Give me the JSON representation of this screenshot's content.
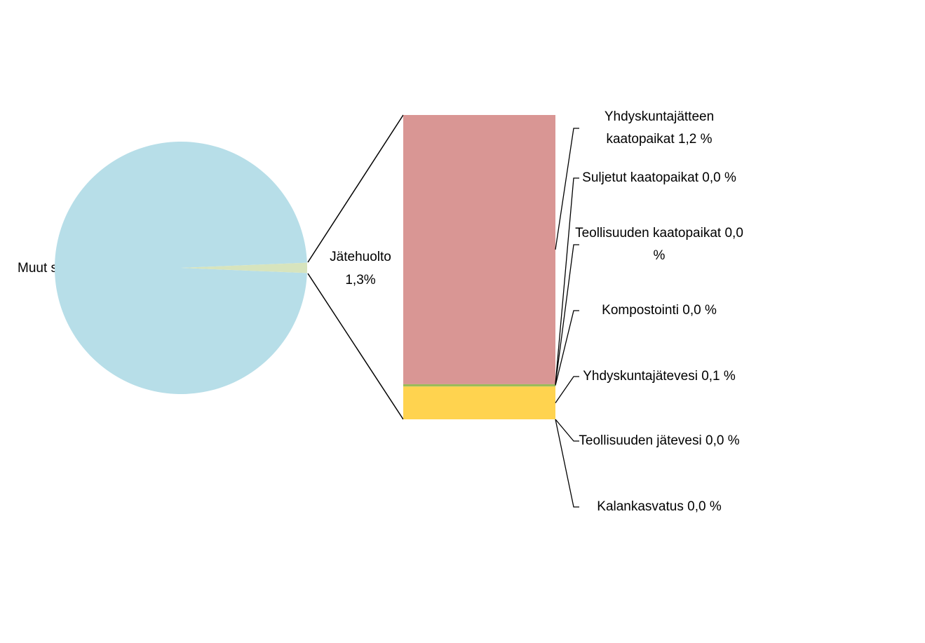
{
  "chart_data": {
    "type": "pie-of-bar",
    "pie": {
      "categories": [
        "Muut sektorit",
        "Jätehuolto"
      ],
      "values": [
        98.7,
        1.3
      ],
      "value_labels": [
        null,
        "1,3%"
      ],
      "colors": [
        "#b7dee8",
        "#d7e4bd"
      ]
    },
    "bar": {
      "categories": [
        "Yhdyskuntajätteen kaatopaikat",
        "Suljetut kaatopaikat",
        "Teollisuuden kaatopaikat",
        "Kompostointi",
        "Yhdyskuntajätevesi",
        "Teollisuuden jätevesi",
        "Kalankasvatus"
      ],
      "values": [
        1.15,
        0.0,
        0.0,
        0.01,
        0.14,
        0.0,
        0.0
      ],
      "value_labels": [
        "1,2 %",
        "0,0 %",
        "0,0 %",
        "0,0 %",
        "0,1 %",
        "0,0 %",
        "0,0 %"
      ],
      "colors": [
        "#d99694",
        "#8064a2",
        "#4bacc6",
        "#9bbb59",
        "#ffd34f",
        "#f79646",
        "#4f81bd"
      ]
    }
  }
}
